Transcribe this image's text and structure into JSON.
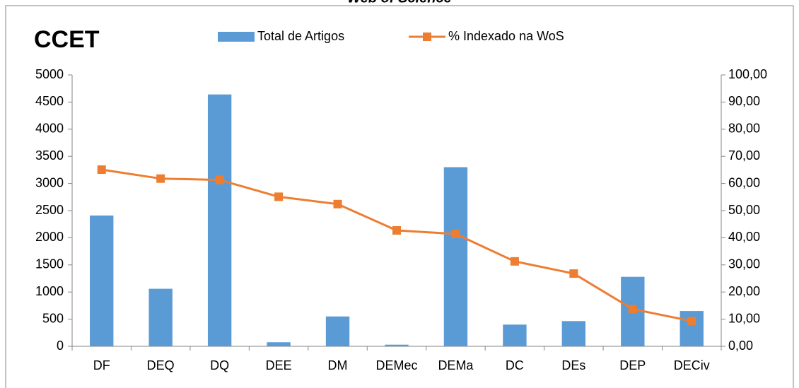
{
  "chart_data": {
    "type": "bar_line",
    "title": "Web of Science",
    "annotation": "CCET",
    "categories": [
      "DF",
      "DEQ",
      "DQ",
      "DEE",
      "DM",
      "DEMec",
      "DEMa",
      "DC",
      "DEs",
      "DEP",
      "DECiv"
    ],
    "series": [
      {
        "name": "Total de Artigos",
        "color": "#5b9bd5",
        "type": "bar",
        "values": [
          2410,
          1060,
          4640,
          75,
          550,
          30,
          3300,
          400,
          465,
          1280,
          650
        ]
      },
      {
        "name": "% Indexado na WoS",
        "color": "#ed7d31",
        "type": "line",
        "axis": "y2",
        "values": [
          65.1,
          61.8,
          61.3,
          55.1,
          52.4,
          42.7,
          41.4,
          31.3,
          26.8,
          13.7,
          9.3
        ]
      }
    ],
    "ylim": [
      0,
      5000
    ],
    "yticks": [
      0,
      500,
      1000,
      1500,
      2000,
      2500,
      3000,
      3500,
      4000,
      4500,
      5000
    ],
    "y2lim": [
      0,
      100
    ],
    "y2ticks": [
      {
        "value": 0,
        "label": "0,00"
      },
      {
        "value": 10,
        "label": "10,00"
      },
      {
        "value": 20,
        "label": "20,00"
      },
      {
        "value": 30,
        "label": "30,00"
      },
      {
        "value": 40,
        "label": "40,00"
      },
      {
        "value": 50,
        "label": "50,00"
      },
      {
        "value": 60,
        "label": "60,00"
      },
      {
        "value": 70,
        "label": "70,00"
      },
      {
        "value": 80,
        "label": "80,00"
      },
      {
        "value": 90,
        "label": "90,00"
      },
      {
        "value": 100,
        "label": "100,00"
      }
    ],
    "legend": "top"
  }
}
